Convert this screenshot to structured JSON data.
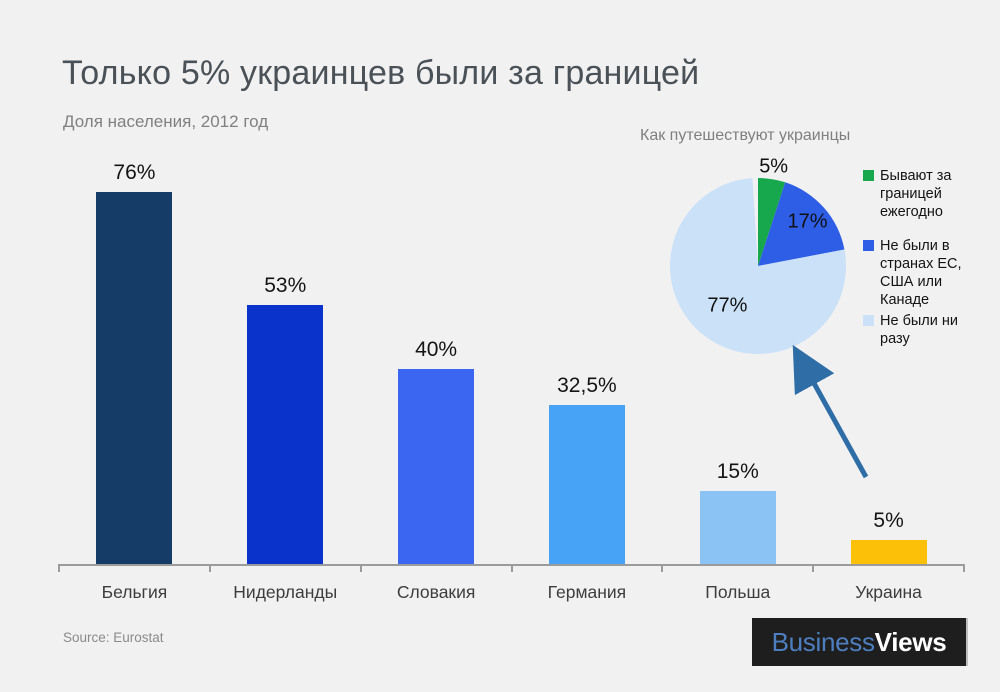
{
  "header": {
    "title": "Только 5% украинцев были за границей",
    "subtitle": "Доля населения, 2012 год"
  },
  "footer": {
    "source": "Source: Eurostat",
    "logo": {
      "part1": "Business",
      "part2": "Views"
    }
  },
  "colors": {
    "background": "#f1f1f2",
    "title_text": "#4a5157",
    "muted_text": "#808080",
    "axis": "#9b9b9b",
    "arrow": "#2f6da6",
    "logo_background": "#1e1e1e",
    "logo_business": "#4d7fc0",
    "logo_views": "#ffffff"
  },
  "chart_data": [
    {
      "type": "bar",
      "title": "Доля населения, 2012 год",
      "categories": [
        "Бельгия",
        "Нидерланды",
        "Словакия",
        "Германия",
        "Польша",
        "Украина"
      ],
      "values": [
        76,
        53,
        40,
        32.5,
        15,
        5
      ],
      "value_labels": [
        "76%",
        "53%",
        "40%",
        "32,5%",
        "15%",
        "5%"
      ],
      "bar_colors": [
        "#143c66",
        "#0a33cc",
        "#3b66f2",
        "#47a3f5",
        "#8cc3f5",
        "#fdc008"
      ],
      "unit": "%",
      "ylim": [
        0,
        80
      ],
      "grid": false,
      "y_axis_visible": false
    },
    {
      "type": "pie",
      "title": "Как путешествуют украинцы",
      "slices": [
        {
          "label": "Бывают за границей ежегодно",
          "value": 5,
          "display": "5%",
          "color": "#17a84d"
        },
        {
          "label": "Не были в странах ЕС, США или Канаде",
          "value": 17,
          "display": "17%",
          "color": "#2e5ee6"
        },
        {
          "label": "Не были ни разу",
          "value": 77,
          "display": "77%",
          "color": "#cbe1f8"
        }
      ],
      "start_angle_deg": 0,
      "legend_position": "right",
      "annotation": "arrow pointing to pie from lower right"
    }
  ]
}
